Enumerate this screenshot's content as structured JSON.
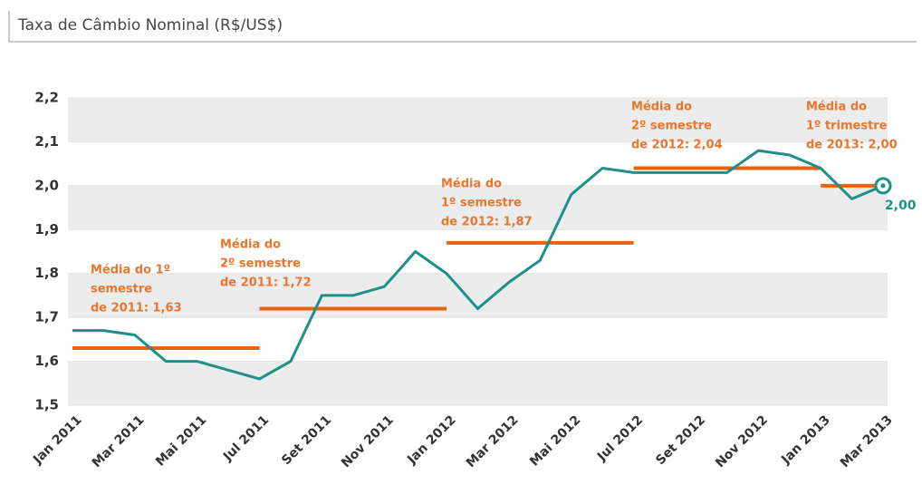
{
  "chart_data": {
    "type": "line",
    "title": "Taxa de Câmbio Nominal (R$/US$)",
    "categories": [
      "Jan 2011",
      null,
      "Mar 2011",
      null,
      "Mai 2011",
      null,
      "Jul 2011",
      null,
      "Set 2011",
      null,
      "Nov 2011",
      null,
      "Jan 2012",
      null,
      "Mar 2012",
      null,
      "Mai 2012",
      null,
      "Jul 2012",
      null,
      "Set 2012",
      null,
      "Nov 2012",
      null,
      "Jan 2013",
      null,
      "Mar 2013"
    ],
    "series": [
      {
        "color": "#1f8f8a",
        "values": [
          1.67,
          1.67,
          1.66,
          1.6,
          1.6,
          1.58,
          1.56,
          1.6,
          1.75,
          1.75,
          1.77,
          1.85,
          1.8,
          1.72,
          1.78,
          1.83,
          1.98,
          2.04,
          2.03,
          2.03,
          2.03,
          2.03,
          2.08,
          2.07,
          2.04,
          1.97,
          2.0
        ],
        "value_labels": [
          null,
          null,
          null,
          null,
          null,
          null,
          null,
          null,
          null,
          null,
          null,
          null,
          null,
          null,
          null,
          null,
          null,
          null,
          null,
          null,
          null,
          null,
          null,
          null,
          null,
          null,
          "2,00"
        ]
      }
    ],
    "averages": [
      {
        "label_lines": [
          "Média do 1º",
          "semestre",
          "de 2011: 1,63"
        ],
        "value": 1.63,
        "from": "Jan 2011",
        "to": "Jul 2011"
      },
      {
        "label_lines": [
          "Média do",
          "2º semestre",
          "de 2011: 1,72"
        ],
        "value": 1.72,
        "from": "Jul 2011",
        "to": "Jan 2012"
      },
      {
        "label_lines": [
          "Média do",
          "1º semestre",
          "de 2012: 1,87"
        ],
        "value": 1.87,
        "from": "Jan 2012",
        "to": "Jul 2012"
      },
      {
        "label_lines": [
          "Média do",
          "2º semestre",
          "de 2012: 2,04"
        ],
        "value": 2.04,
        "from": "Jul 2012",
        "to": "Jan 2013"
      },
      {
        "label_lines": [
          "Média do",
          "1º trimestre",
          "de 2013: 2,00"
        ],
        "value": 2.0,
        "from": "Jan 2013",
        "to": "Mar 2013"
      }
    ],
    "average_color": "#e8620f",
    "ylim": [
      1.5,
      2.2
    ],
    "yticks": [
      {
        "value": 1.5,
        "label": "1,5"
      },
      {
        "value": 1.6,
        "label": "1,6"
      },
      {
        "value": 1.7,
        "label": "1,7"
      },
      {
        "value": 1.8,
        "label": "1,8"
      },
      {
        "value": 1.9,
        "label": "1,9"
      },
      {
        "value": 2.0,
        "label": "2,0"
      },
      {
        "value": 2.1,
        "label": "2,1"
      },
      {
        "value": 2.2,
        "label": "2,2"
      }
    ],
    "grid": true
  }
}
